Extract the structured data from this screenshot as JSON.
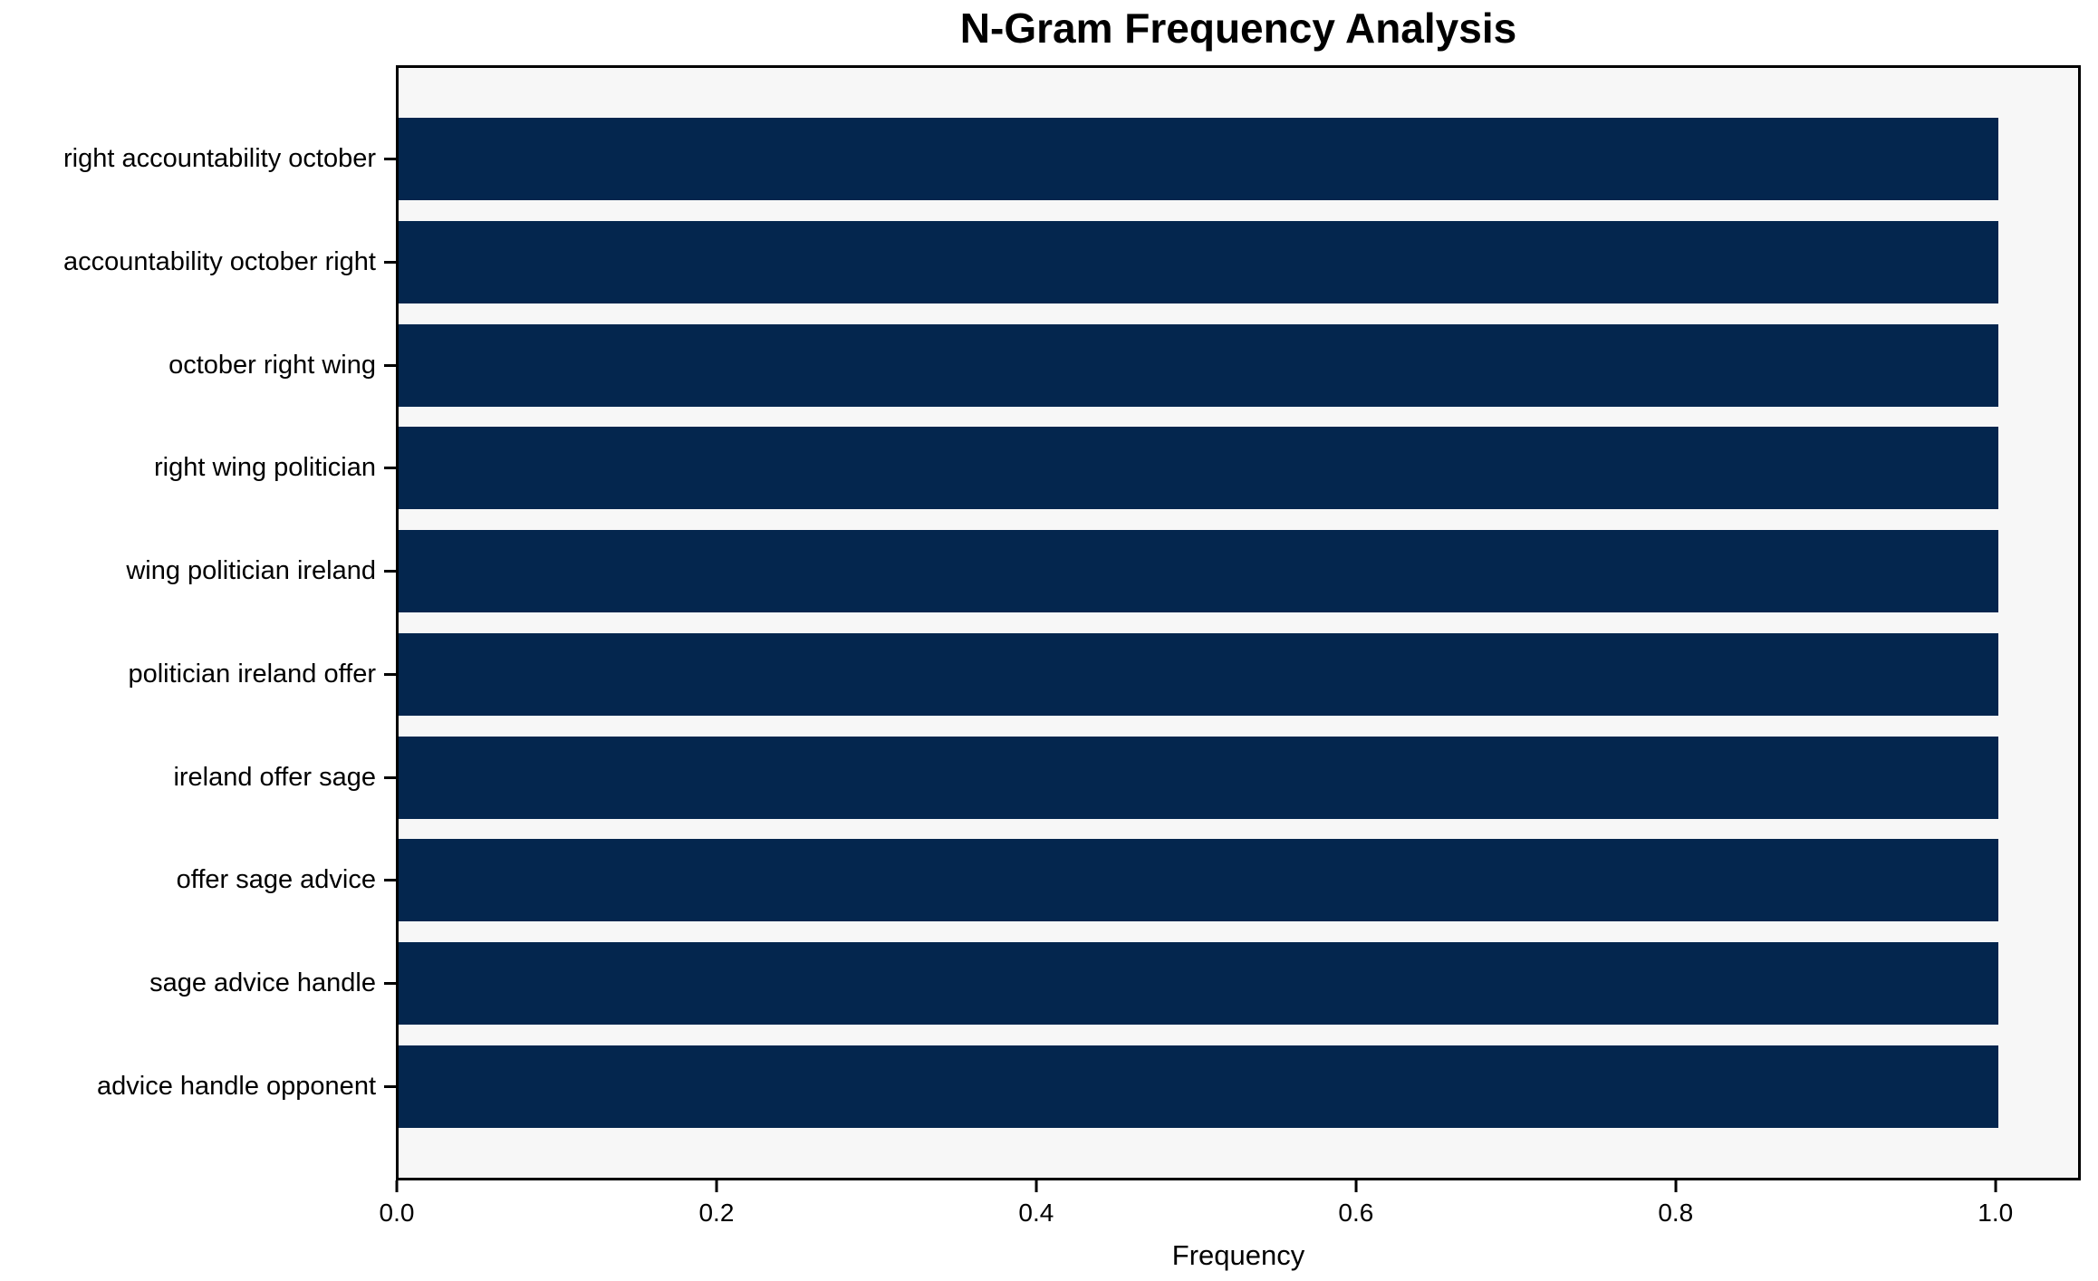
{
  "chart_data": {
    "type": "bar",
    "orientation": "horizontal",
    "title": "N-Gram Frequency Analysis",
    "xlabel": "Frequency",
    "ylabel": "",
    "categories": [
      "right accountability october",
      "accountability october right",
      "october right wing",
      "right wing politician",
      "wing politician ireland",
      "politician ireland offer",
      "ireland offer sage",
      "offer sage advice",
      "sage advice handle",
      "advice handle opponent"
    ],
    "values": [
      1.0,
      1.0,
      1.0,
      1.0,
      1.0,
      1.0,
      1.0,
      1.0,
      1.0,
      1.0
    ],
    "x_ticks": [
      "0.0",
      "0.2",
      "0.4",
      "0.6",
      "0.8",
      "1.0"
    ],
    "x_tick_values": [
      0.0,
      0.2,
      0.4,
      0.6,
      0.8,
      1.0
    ],
    "xlim": [
      0,
      1.05
    ],
    "grid": false,
    "colors": {
      "bar": "#04264e",
      "plot_background": "#f7f7f7",
      "figure_background": "#ffffff",
      "spine": "#000000",
      "text": "#000000"
    }
  }
}
